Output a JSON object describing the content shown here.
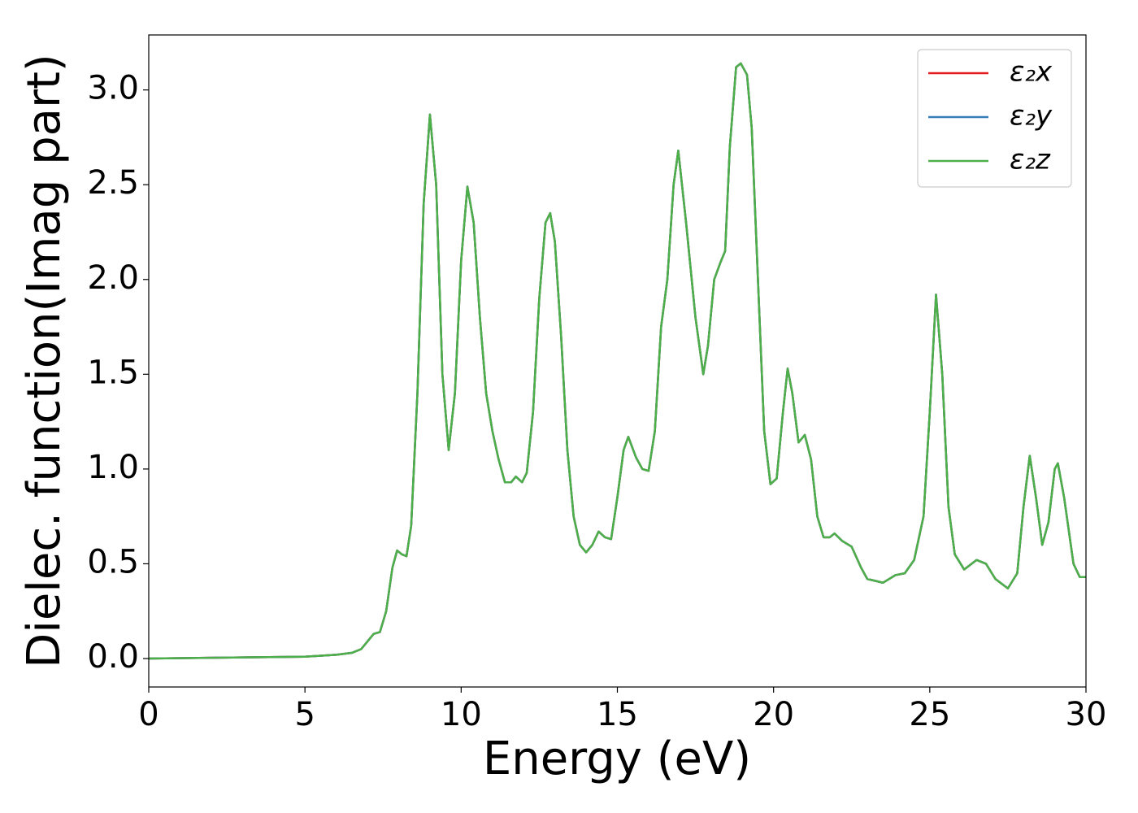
{
  "chart_data": {
    "type": "line",
    "xlabel": "Energy (eV)",
    "ylabel": "Dielec. function(Imag part)",
    "x": [
      0,
      5,
      6,
      6.5,
      6.8,
      7.0,
      7.2,
      7.4,
      7.6,
      7.8,
      7.95,
      8.1,
      8.25,
      8.4,
      8.6,
      8.8,
      9.0,
      9.2,
      9.4,
      9.6,
      9.8,
      10.0,
      10.2,
      10.4,
      10.6,
      10.8,
      11.0,
      11.2,
      11.4,
      11.6,
      11.75,
      11.95,
      12.1,
      12.3,
      12.5,
      12.7,
      12.85,
      13.0,
      13.2,
      13.4,
      13.6,
      13.8,
      14.0,
      14.2,
      14.4,
      14.6,
      14.8,
      15.0,
      15.2,
      15.35,
      15.6,
      15.8,
      16.0,
      16.2,
      16.4,
      16.6,
      16.8,
      16.95,
      17.2,
      17.5,
      17.75,
      17.9,
      18.1,
      18.3,
      18.45,
      18.6,
      18.8,
      18.95,
      19.15,
      19.3,
      19.5,
      19.7,
      19.9,
      20.1,
      20.3,
      20.45,
      20.6,
      20.8,
      21.0,
      21.2,
      21.4,
      21.6,
      21.8,
      21.95,
      22.2,
      22.5,
      22.8,
      23.0,
      23.5,
      23.9,
      24.2,
      24.5,
      24.8,
      25.0,
      25.2,
      25.4,
      25.6,
      25.8,
      26.1,
      26.5,
      26.8,
      27.1,
      27.5,
      27.8,
      28.0,
      28.2,
      28.4,
      28.6,
      28.8,
      29.0,
      29.1,
      29.3,
      29.6,
      29.8,
      30.0
    ],
    "series": [
      {
        "name": "ε₂x",
        "color": "#e41a1c",
        "values": [
          0,
          0.01,
          0.02,
          0.03,
          0.05,
          0.09,
          0.13,
          0.14,
          0.25,
          0.48,
          0.57,
          0.55,
          0.54,
          0.7,
          1.4,
          2.4,
          2.87,
          2.5,
          1.5,
          1.1,
          1.4,
          2.1,
          2.49,
          2.3,
          1.8,
          1.4,
          1.2,
          1.05,
          0.93,
          0.93,
          0.96,
          0.93,
          0.98,
          1.3,
          1.9,
          2.3,
          2.35,
          2.2,
          1.7,
          1.1,
          0.75,
          0.6,
          0.56,
          0.6,
          0.67,
          0.64,
          0.63,
          0.85,
          1.1,
          1.17,
          1.06,
          1.0,
          0.99,
          1.2,
          1.75,
          2.0,
          2.5,
          2.68,
          2.3,
          1.8,
          1.5,
          1.65,
          2.0,
          2.09,
          2.15,
          2.7,
          3.12,
          3.14,
          3.08,
          2.8,
          2.0,
          1.2,
          0.92,
          0.95,
          1.3,
          1.53,
          1.4,
          1.14,
          1.18,
          1.05,
          0.75,
          0.64,
          0.64,
          0.66,
          0.62,
          0.59,
          0.48,
          0.42,
          0.4,
          0.44,
          0.45,
          0.52,
          0.75,
          1.3,
          1.92,
          1.5,
          0.8,
          0.55,
          0.47,
          0.52,
          0.5,
          0.42,
          0.37,
          0.45,
          0.8,
          1.07,
          0.85,
          0.6,
          0.72,
          1.0,
          1.03,
          0.85,
          0.5,
          0.43,
          0.43
        ]
      },
      {
        "name": "ε₂y",
        "color": "#377eb8",
        "values": [
          0,
          0.01,
          0.02,
          0.03,
          0.05,
          0.09,
          0.13,
          0.14,
          0.25,
          0.48,
          0.57,
          0.55,
          0.54,
          0.7,
          1.4,
          2.4,
          2.87,
          2.5,
          1.5,
          1.1,
          1.4,
          2.1,
          2.49,
          2.3,
          1.8,
          1.4,
          1.2,
          1.05,
          0.93,
          0.93,
          0.96,
          0.93,
          0.98,
          1.3,
          1.9,
          2.3,
          2.35,
          2.2,
          1.7,
          1.1,
          0.75,
          0.6,
          0.56,
          0.6,
          0.67,
          0.64,
          0.63,
          0.85,
          1.1,
          1.17,
          1.06,
          1.0,
          0.99,
          1.2,
          1.75,
          2.0,
          2.5,
          2.68,
          2.3,
          1.8,
          1.5,
          1.65,
          2.0,
          2.09,
          2.15,
          2.7,
          3.12,
          3.14,
          3.08,
          2.8,
          2.0,
          1.2,
          0.92,
          0.95,
          1.3,
          1.53,
          1.4,
          1.14,
          1.18,
          1.05,
          0.75,
          0.64,
          0.64,
          0.66,
          0.62,
          0.59,
          0.48,
          0.42,
          0.4,
          0.44,
          0.45,
          0.52,
          0.75,
          1.3,
          1.92,
          1.5,
          0.8,
          0.55,
          0.47,
          0.52,
          0.5,
          0.42,
          0.37,
          0.45,
          0.8,
          1.07,
          0.85,
          0.6,
          0.72,
          1.0,
          1.03,
          0.85,
          0.5,
          0.43,
          0.43
        ]
      },
      {
        "name": "ε₂z",
        "color": "#4daf4a",
        "values": [
          0,
          0.01,
          0.02,
          0.03,
          0.05,
          0.09,
          0.13,
          0.14,
          0.25,
          0.48,
          0.57,
          0.55,
          0.54,
          0.7,
          1.4,
          2.4,
          2.87,
          2.5,
          1.5,
          1.1,
          1.4,
          2.1,
          2.49,
          2.3,
          1.8,
          1.4,
          1.2,
          1.05,
          0.93,
          0.93,
          0.96,
          0.93,
          0.98,
          1.3,
          1.9,
          2.3,
          2.35,
          2.2,
          1.7,
          1.1,
          0.75,
          0.6,
          0.56,
          0.6,
          0.67,
          0.64,
          0.63,
          0.85,
          1.1,
          1.17,
          1.06,
          1.0,
          0.99,
          1.2,
          1.75,
          2.0,
          2.5,
          2.68,
          2.3,
          1.8,
          1.5,
          1.65,
          2.0,
          2.09,
          2.15,
          2.7,
          3.12,
          3.14,
          3.08,
          2.8,
          2.0,
          1.2,
          0.92,
          0.95,
          1.3,
          1.53,
          1.4,
          1.14,
          1.18,
          1.05,
          0.75,
          0.64,
          0.64,
          0.66,
          0.62,
          0.59,
          0.48,
          0.42,
          0.4,
          0.44,
          0.45,
          0.52,
          0.75,
          1.3,
          1.92,
          1.5,
          0.8,
          0.55,
          0.47,
          0.52,
          0.5,
          0.42,
          0.37,
          0.45,
          0.8,
          1.07,
          0.85,
          0.6,
          0.72,
          1.0,
          1.03,
          0.85,
          0.5,
          0.43,
          0.43
        ]
      }
    ],
    "xlim": [
      0,
      30
    ],
    "xticks": [
      0,
      5,
      10,
      15,
      20,
      25,
      30
    ],
    "ylim": [
      -0.15,
      3.29
    ],
    "yticks": [
      {
        "value": 0,
        "label": "0.0"
      },
      0.5,
      {
        "value": 1,
        "label": "1.0"
      },
      1.5,
      {
        "value": 2,
        "label": "2.0"
      },
      2.5,
      {
        "value": 3,
        "label": "3.0"
      }
    ],
    "grid": false,
    "legend": "upper right"
  }
}
